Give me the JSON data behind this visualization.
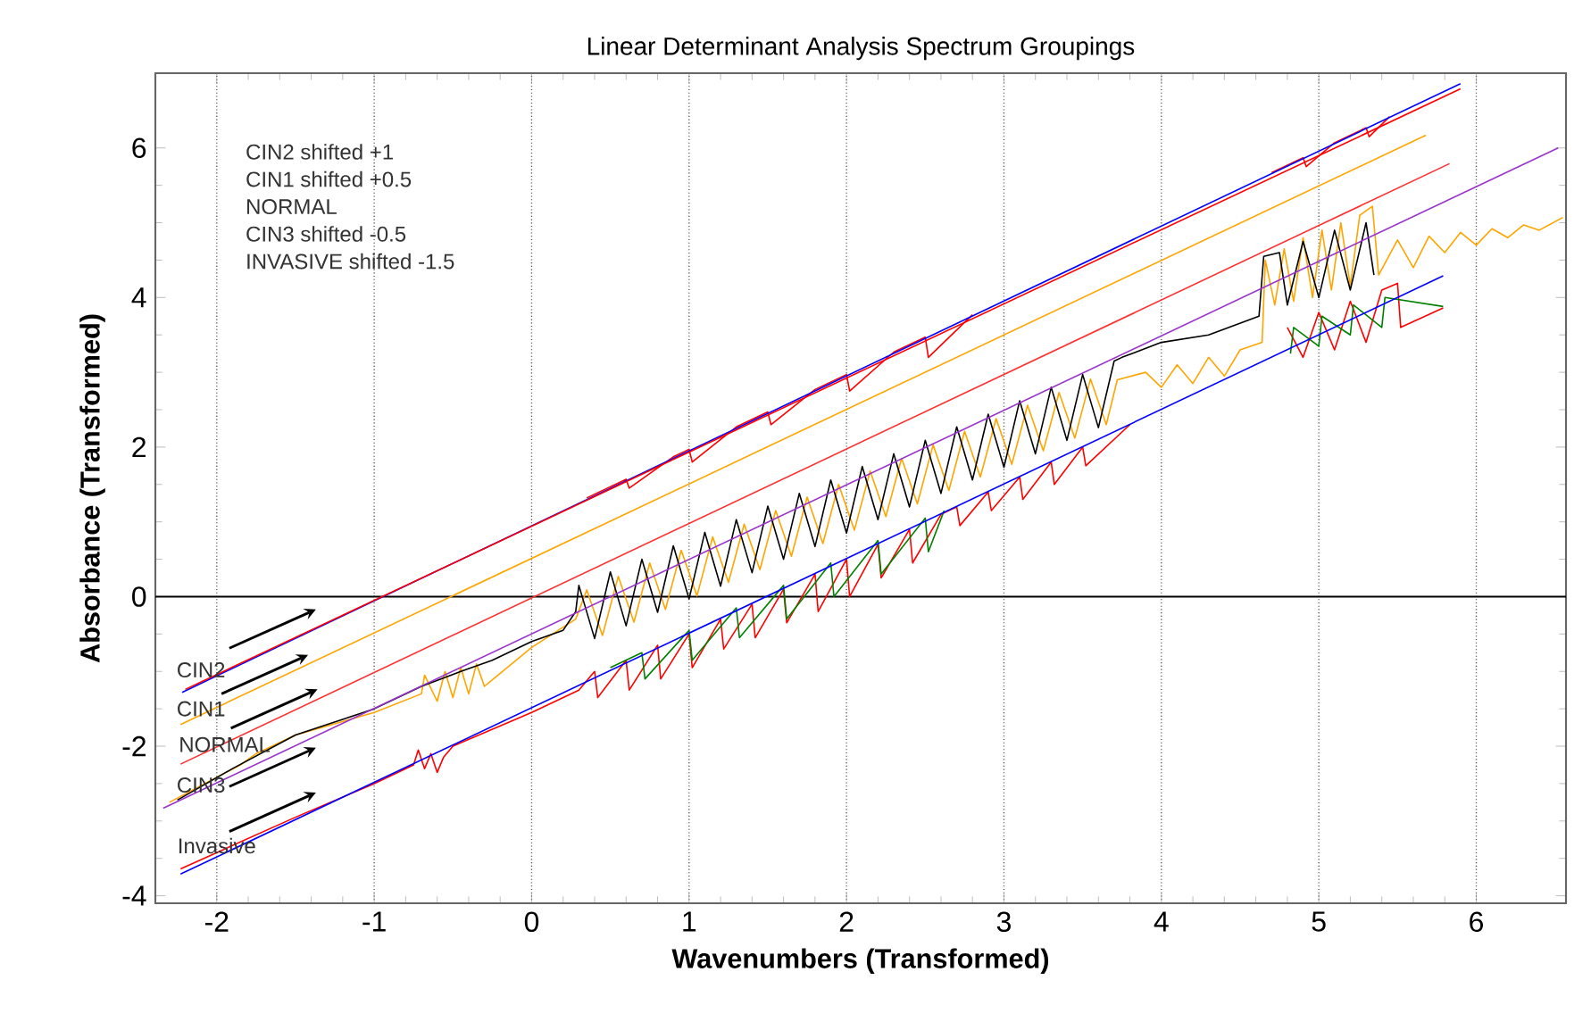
{
  "chart_data": {
    "type": "line",
    "title": "Linear Determinant Analysis Spectrum Groupings",
    "xlabel": "Wavenumbers (Transformed)",
    "ylabel": "Absorbance (Transformed)",
    "xlim": [
      -2.39,
      6.57
    ],
    "ylim": [
      -4.1,
      7
    ],
    "xticks": [
      -2,
      -1,
      0,
      1,
      2,
      3,
      4,
      5,
      6
    ],
    "yticks": [
      -4,
      -2,
      0,
      2,
      4,
      6
    ],
    "grid": "x",
    "ref_lines": [
      {
        "axis": "y",
        "value": 0,
        "color": "#000000"
      }
    ],
    "annotations": [
      "CIN2 shifted +1",
      "CIN1 shifted +0.5",
      "NORMAL",
      "CIN3 shifted -0.5",
      "INVASIVE shifted -1.5",
      "CIN2",
      "CIN1",
      "NORMAL",
      "CIN3",
      "Invasive"
    ],
    "series": [
      {
        "color": "#ff0000",
        "x": [
          0.35,
          0.6,
          0.62,
          0.9,
          1.0,
          1.02,
          1.3,
          1.5,
          1.52,
          1.8,
          2.0,
          2.02,
          2.3,
          2.5,
          2.52,
          2.8,
          2.85,
          4.7,
          4.9,
          4.92,
          5.1,
          5.3,
          5.32,
          5.45
        ],
        "values": [
          1.32,
          1.57,
          1.45,
          1.87,
          1.97,
          1.8,
          2.27,
          2.47,
          2.3,
          2.77,
          2.97,
          2.75,
          3.27,
          3.47,
          3.2,
          3.77,
          null,
          5.67,
          5.87,
          5.75,
          6.07,
          6.27,
          6.15,
          6.42
        ]
      },
      {
        "color": "#ffa500",
        "x": [
          -2.3,
          -1.85,
          -1.75,
          -1.5,
          -1.0,
          -0.7,
          -0.68,
          -0.6,
          -0.55,
          -0.5,
          -0.45,
          -0.4,
          -0.35,
          -0.3,
          0,
          0.28,
          0.35,
          0.45,
          0.55,
          0.65,
          0.75,
          0.85,
          0.95,
          1.05,
          1.15,
          1.25,
          1.35,
          1.45,
          1.55,
          1.65,
          1.75,
          1.85,
          1.95,
          2.05,
          2.15,
          2.25,
          2.35,
          2.45,
          2.55,
          2.65,
          2.75,
          2.85,
          2.95,
          3.05,
          3.15,
          3.25,
          3.35,
          3.45,
          3.55,
          3.65,
          3.72,
          3.9,
          4.0,
          4.1,
          4.2,
          4.3,
          4.4,
          4.5,
          4.64,
          4.66,
          4.72,
          4.78,
          4.84,
          4.9,
          4.96,
          5.02,
          5.08,
          5.14,
          5.2,
          5.26,
          5.34,
          5.38,
          5.5,
          5.6,
          5.7,
          5.8,
          5.9,
          6.0,
          6.1,
          6.2,
          6.3,
          6.4,
          6.55
        ],
        "values": [
          -2.75,
          -2.25,
          -2.1,
          -1.85,
          -1.55,
          -1.3,
          -1.05,
          -1.4,
          -1.0,
          -1.35,
          -0.95,
          -1.3,
          -0.9,
          -1.2,
          -0.68,
          -0.3,
          0.09,
          -0.52,
          0.27,
          -0.34,
          0.45,
          -0.17,
          0.62,
          0.01,
          0.8,
          0.19,
          0.97,
          0.36,
          1.15,
          0.54,
          1.33,
          0.71,
          1.5,
          0.89,
          1.68,
          1.07,
          1.85,
          1.24,
          2.03,
          1.42,
          2.21,
          1.6,
          2.38,
          1.77,
          2.56,
          1.95,
          2.73,
          2.12,
          2.91,
          2.3,
          2.9,
          3.0,
          2.8,
          3.1,
          2.85,
          3.2,
          2.95,
          3.3,
          3.4,
          4.5,
          3.9,
          4.65,
          3.95,
          4.8,
          4.0,
          4.9,
          4.1,
          5.0,
          4.15,
          5.1,
          5.22,
          4.3,
          4.77,
          4.4,
          4.82,
          4.6,
          4.87,
          4.7,
          4.92,
          4.8,
          4.97,
          4.9,
          5.07
        ]
      },
      {
        "color": "#000000",
        "x": [
          -2.25,
          -1.9,
          -1.5,
          -1.0,
          -0.7,
          -0.45,
          -0.25,
          0,
          0.2,
          0.28,
          0.3,
          0.4,
          0.5,
          0.6,
          0.7,
          0.8,
          0.9,
          1.0,
          1.1,
          1.2,
          1.3,
          1.4,
          1.5,
          1.6,
          1.7,
          1.8,
          1.9,
          2.0,
          2.1,
          2.2,
          2.3,
          2.4,
          2.5,
          2.6,
          2.7,
          2.8,
          2.9,
          3.0,
          3.1,
          3.2,
          3.3,
          3.4,
          3.5,
          3.6,
          3.7,
          3.75,
          4.0,
          4.3,
          4.62,
          4.65,
          4.75,
          4.8,
          4.9,
          5.0,
          5.1,
          5.2,
          5.3,
          5.35
        ],
        "values": [
          -2.72,
          -2.3,
          -1.85,
          -1.5,
          -1.2,
          -1.0,
          -0.85,
          -0.6,
          -0.45,
          -0.2,
          0.15,
          -0.56,
          0.33,
          -0.39,
          0.5,
          -0.21,
          0.68,
          -0.03,
          0.86,
          0.14,
          1.03,
          0.32,
          1.21,
          0.5,
          1.38,
          0.67,
          1.56,
          0.85,
          1.74,
          1.03,
          1.91,
          1.2,
          2.09,
          1.38,
          2.27,
          1.56,
          2.44,
          1.73,
          2.62,
          1.91,
          2.8,
          2.09,
          2.97,
          2.26,
          3.15,
          3.2,
          3.4,
          3.5,
          3.75,
          4.55,
          4.6,
          3.9,
          4.75,
          4.0,
          4.9,
          4.1,
          5.0,
          4.3
        ]
      },
      {
        "color": "#ff0000",
        "x": [
          -2.23,
          -1.5,
          -1.0,
          -0.75,
          -0.72,
          -0.68,
          -0.64,
          -0.6,
          -0.56,
          -0.5,
          0,
          0.3,
          0.4,
          0.42,
          0.6,
          0.62,
          0.8,
          0.82,
          1.0,
          1.02,
          1.2,
          1.22,
          1.4,
          1.42,
          1.6,
          1.62,
          1.8,
          1.82,
          2.0,
          2.02,
          2.2,
          2.22,
          2.4,
          2.42,
          2.6,
          2.65,
          2.7,
          2.72,
          2.9,
          2.92,
          3.1,
          3.12,
          3.3,
          3.32,
          3.5,
          3.52,
          3.8,
          4.78,
          4.8,
          4.9,
          5.0,
          5.1,
          5.2,
          5.3,
          5.4,
          5.5,
          5.52,
          5.79
        ],
        "values": [
          -3.64,
          -2.95,
          -2.5,
          -2.25,
          -2.05,
          -2.3,
          -2.1,
          -2.35,
          -2.15,
          -2.0,
          -1.55,
          -1.25,
          -1.0,
          -1.35,
          -0.85,
          -1.25,
          -0.65,
          -1.1,
          -0.5,
          -0.95,
          -0.3,
          -0.7,
          -0.1,
          -0.55,
          0.1,
          -0.35,
          0.3,
          -0.2,
          0.5,
          0.0,
          0.7,
          0.25,
          0.9,
          0.45,
          1.1,
          1.15,
          1.2,
          0.95,
          1.4,
          1.15,
          1.6,
          1.3,
          1.8,
          1.5,
          2.0,
          1.75,
          2.3,
          null,
          3.6,
          3.2,
          3.8,
          3.3,
          3.95,
          3.4,
          4.1,
          4.19,
          3.6,
          3.86
        ]
      },
      {
        "color": "#008000",
        "x": [
          0.5,
          0.7,
          0.72,
          1.0,
          1.02,
          1.3,
          1.32,
          1.6,
          1.62,
          1.9,
          1.92,
          2.2,
          2.22,
          2.5,
          2.52,
          2.62,
          2.7,
          4.82,
          4.84,
          5.0,
          5.02,
          5.2,
          5.22,
          5.4,
          5.42,
          5.79
        ],
        "values": [
          -0.95,
          -0.75,
          -1.1,
          -0.45,
          -0.85,
          -0.15,
          -0.55,
          0.15,
          -0.3,
          0.45,
          0.0,
          0.75,
          0.3,
          1.05,
          0.6,
          1.15,
          null,
          3.25,
          3.6,
          3.35,
          3.75,
          3.5,
          3.9,
          3.6,
          4.0,
          3.88
        ]
      },
      {
        "color": "#0000ff",
        "x": [
          -2.22,
          5.9
        ],
        "values": [
          -1.28,
          6.86
        ]
      },
      {
        "color": "#ff0000",
        "x": [
          -2.2,
          5.9
        ],
        "values": [
          -1.24,
          6.79
        ]
      },
      {
        "color": "#ffa500",
        "x": [
          -2.23,
          5.68
        ],
        "values": [
          -1.71,
          6.17
        ]
      },
      {
        "color": "#ff3030",
        "x": [
          -2.23,
          5.83
        ],
        "values": [
          -2.24,
          5.79
        ]
      },
      {
        "color": "#9933cc",
        "x": [
          -2.34,
          6.52
        ],
        "values": [
          -2.83,
          6.0
        ]
      },
      {
        "color": "#0000ff",
        "x": [
          -2.23,
          5.79
        ],
        "values": [
          -3.71,
          4.29
        ]
      }
    ]
  }
}
